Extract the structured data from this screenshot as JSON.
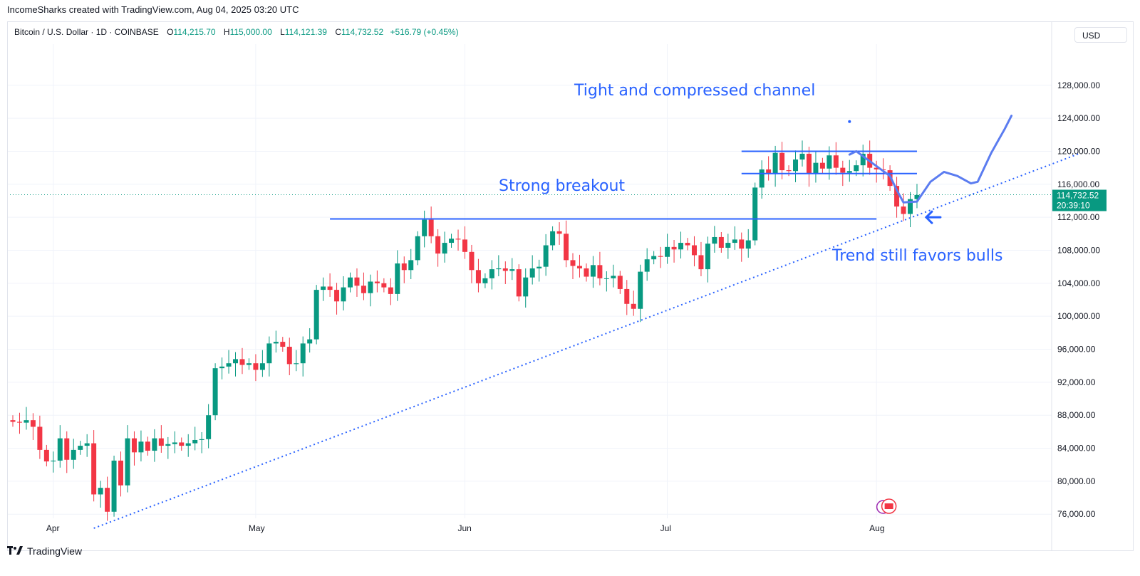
{
  "header": {
    "credit": "IncomeSharks created with TradingView.com, Aug 04, 2025 03:20 UTC"
  },
  "legend": {
    "symbol": "Bitcoin / U.S. Dollar · 1D · COINBASE",
    "open_label": "O",
    "open": "114,215.70",
    "high_label": "H",
    "high": "115,000.00",
    "low_label": "L",
    "low": "114,121.39",
    "close_label": "C",
    "close": "114,732.52",
    "change": "+516.79 (+0.45%)"
  },
  "currency_button": "USD",
  "price_tag": {
    "price": "114,732.52",
    "countdown": "20:39:10"
  },
  "footer": {
    "brand": "TradingView",
    "logo": "tv-logo-icon"
  },
  "colors": {
    "up": "#089981",
    "down": "#f23645",
    "annotation": "#2962ff",
    "grid": "#f0f3fa"
  },
  "chart_data": {
    "type": "candlestick",
    "title": "Bitcoin / U.S. Dollar · 1D · COINBASE",
    "ylim": [
      73000,
      131000
    ],
    "y_ticks": [
      76000,
      80000,
      84000,
      88000,
      92000,
      96000,
      100000,
      104000,
      108000,
      112000,
      116000,
      120000,
      124000,
      128000
    ],
    "y_tick_labels": [
      "76,000.00",
      "80,000.00",
      "84,000.00",
      "88,000.00",
      "92,000.00",
      "96,000.00",
      "100,000.00",
      "104,000.00",
      "108,000.00",
      "112,000.00",
      "116,000.00",
      "120,000.00",
      "124,000.00",
      "128,000.00"
    ],
    "x_ticks": [
      {
        "label": "Apr",
        "index": 6
      },
      {
        "label": "May",
        "index": 36
      },
      {
        "label": "Jun",
        "index": 67
      },
      {
        "label": "Jul",
        "index": 97
      },
      {
        "label": "Aug",
        "index": 128
      }
    ],
    "close_series": [
      87200,
      87100,
      87400,
      86600,
      83800,
      82400,
      82500,
      85200,
      82600,
      83800,
      84300,
      84600,
      78400,
      79200,
      76300,
      82500,
      79500,
      85200,
      83500,
      84800,
      83700,
      85200,
      84300,
      84500,
      84700,
      84300,
      84600,
      85000,
      85100,
      88000,
      93700,
      93900,
      94300,
      94800,
      94100,
      94300,
      93500,
      94300,
      96700,
      96900,
      96300,
      94200,
      94300,
      96700,
      97200,
      103200,
      103600,
      103200,
      101800,
      103500,
      104700,
      103700,
      102800,
      104200,
      104000,
      103500,
      102700,
      106400,
      105600,
      106800,
      109700,
      111700,
      109700,
      107600,
      108900,
      109400,
      109300,
      107800,
      105600,
      104000,
      104600,
      105700,
      105800,
      105500,
      105700,
      102400,
      104700,
      105800,
      106000,
      108600,
      110300,
      110000,
      106800,
      106100,
      105800,
      104800,
      106200,
      104600,
      104600,
      104900,
      103300,
      101500,
      100900,
      105400,
      106900,
      107300,
      107200,
      108400,
      108100,
      108900,
      108600,
      107400,
      105700,
      108800,
      109600,
      108300,
      108900,
      109300,
      108200,
      109200,
      115600,
      117800,
      117300,
      119800,
      117700,
      117600,
      119000,
      119700,
      117300,
      118600,
      117900,
      119500,
      118000,
      117400,
      117600,
      118300,
      119700,
      118000,
      117800,
      117700,
      115800,
      113300,
      112400,
      114200,
      114700
    ],
    "annotations": [
      {
        "text": "Tight and compressed channel"
      },
      {
        "text": "Strong breakout"
      },
      {
        "text": "Trend still favors bulls"
      }
    ],
    "lines": [
      {
        "name": "breakout-level",
        "price": 111800,
        "from_index": 47,
        "to_index": 128
      },
      {
        "name": "channel-top",
        "price": 120000,
        "from_index": 108,
        "to_index": 134
      },
      {
        "name": "channel-bottom",
        "price": 117300,
        "from_index": 108,
        "to_index": 134
      },
      {
        "name": "trendline",
        "price_start": 74300,
        "index_start": 12,
        "price_end": 119700,
        "index_end": 158
      }
    ],
    "last_price": 114732.52,
    "grid": true
  }
}
